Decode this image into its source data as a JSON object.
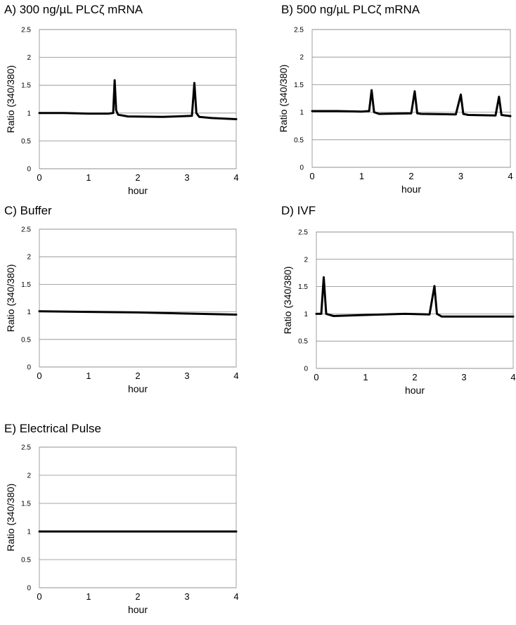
{
  "chart_data": [
    {
      "type": "line",
      "id": "A",
      "title": "A) 300 ng/µL PLCζ mRNA",
      "xlabel": "hour",
      "ylabel": "Ratio (340/380)",
      "xlim": [
        0,
        4
      ],
      "ylim": [
        0,
        2.5
      ],
      "xticks": [
        "0",
        "1",
        "2",
        "3",
        "4"
      ],
      "yticks": [
        "0",
        "0.5",
        "1",
        "1.5",
        "2",
        "2.5"
      ],
      "grid": true,
      "series": [
        {
          "name": "ratio",
          "x": [
            0,
            0.5,
            1.0,
            1.4,
            1.5,
            1.53,
            1.56,
            1.6,
            1.8,
            2.5,
            3.1,
            3.15,
            3.19,
            3.25,
            3.5,
            4.0
          ],
          "y": [
            1.0,
            1.0,
            0.99,
            0.99,
            1.0,
            1.59,
            1.05,
            0.97,
            0.94,
            0.93,
            0.95,
            1.54,
            1.0,
            0.93,
            0.91,
            0.89
          ]
        }
      ]
    },
    {
      "type": "line",
      "id": "B",
      "title": "B) 500 ng/µL PLCζ mRNA",
      "xlabel": "hour",
      "ylabel": "Ratio (340/380)",
      "xlim": [
        0,
        4
      ],
      "ylim": [
        0,
        2.5
      ],
      "xticks": [
        "0",
        "1",
        "2",
        "3",
        "4"
      ],
      "yticks": [
        "0",
        "0.5",
        "1",
        "1.5",
        "2",
        "2.5"
      ],
      "grid": true,
      "series": [
        {
          "name": "ratio",
          "x": [
            0,
            0.5,
            1.0,
            1.15,
            1.2,
            1.25,
            1.35,
            2.0,
            2.07,
            2.12,
            2.2,
            2.9,
            3.0,
            3.05,
            3.15,
            3.7,
            3.77,
            3.82,
            3.9,
            4.0
          ],
          "y": [
            1.02,
            1.02,
            1.01,
            1.02,
            1.4,
            1.0,
            0.97,
            0.98,
            1.38,
            0.98,
            0.97,
            0.96,
            1.32,
            0.97,
            0.95,
            0.94,
            1.28,
            0.95,
            0.94,
            0.93
          ]
        }
      ]
    },
    {
      "type": "line",
      "id": "C",
      "title": "C) Buffer",
      "xlabel": "hour",
      "ylabel": "Ratio (340/380)",
      "xlim": [
        0,
        4
      ],
      "ylim": [
        0,
        2.5
      ],
      "xticks": [
        "0",
        "1",
        "2",
        "3",
        "4"
      ],
      "yticks": [
        "0",
        "0.5",
        "1",
        "1.5",
        "2",
        "2.5"
      ],
      "grid": true,
      "series": [
        {
          "name": "ratio",
          "x": [
            0,
            1.0,
            2.0,
            3.0,
            4.0
          ],
          "y": [
            1.01,
            1.0,
            0.99,
            0.97,
            0.95
          ]
        }
      ]
    },
    {
      "type": "line",
      "id": "D",
      "title": "D)  IVF",
      "xlabel": "hour",
      "ylabel": "Ratio (340/380)",
      "xlim": [
        0,
        4
      ],
      "ylim": [
        0,
        2.5
      ],
      "xticks": [
        "0",
        "1",
        "2",
        "3",
        "4"
      ],
      "yticks": [
        "0",
        "0.5",
        "1",
        "1.5",
        "2",
        "2.5"
      ],
      "grid": true,
      "series": [
        {
          "name": "ratio",
          "x": [
            0,
            0.1,
            0.15,
            0.2,
            0.35,
            1.0,
            1.8,
            2.3,
            2.4,
            2.45,
            2.55,
            3.0,
            4.0
          ],
          "y": [
            1.0,
            1.0,
            1.67,
            1.0,
            0.96,
            0.98,
            1.0,
            0.99,
            1.51,
            1.0,
            0.95,
            0.95,
            0.95
          ]
        }
      ]
    },
    {
      "type": "line",
      "id": "E",
      "title": "E)  Electrical Pulse",
      "xlabel": "hour",
      "ylabel": "Ratio (340/380)",
      "xlim": [
        0,
        4
      ],
      "ylim": [
        0,
        2.5
      ],
      "xticks": [
        "0",
        "1",
        "2",
        "3",
        "4"
      ],
      "yticks": [
        "0",
        "0.5",
        "1",
        "1.5",
        "2",
        "2.5"
      ],
      "grid": true,
      "series": [
        {
          "name": "ratio",
          "x": [
            0,
            1.0,
            2.0,
            3.0,
            4.0
          ],
          "y": [
            1.0,
            1.0,
            1.0,
            1.0,
            1.0
          ]
        }
      ]
    }
  ]
}
